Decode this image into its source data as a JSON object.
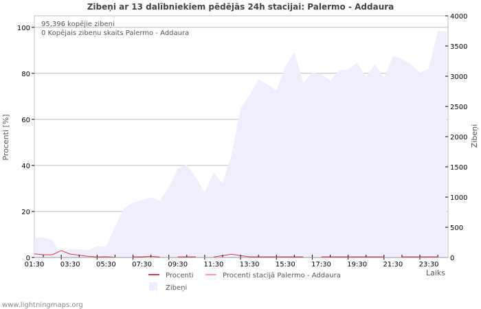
{
  "chart_data": {
    "type": "area",
    "title": "Zibeņi ar 13 dalībniekiem pēdējās 24h stacijai: Palermo - Addaura",
    "info_lines": [
      "95,396 kopējie zibeņi",
      "0 Kopējais zibeņu skaits Palermo - Addaura"
    ],
    "xlabel": "Laiks",
    "ylabel_left": "Procenti   [%]",
    "ylabel_right": "Zibeņi",
    "xlim_hours": [
      1.5,
      24.57
    ],
    "ylim_left": [
      0,
      105
    ],
    "ylim_right": [
      0,
      4000
    ],
    "x_tick_labels": [
      "01:30",
      "03:30",
      "05:30",
      "07:30",
      "09:30",
      "11:30",
      "13:30",
      "15:30",
      "17:30",
      "19:30",
      "21:30",
      "23:30"
    ],
    "y_left_ticks": [
      "0",
      "20",
      "40",
      "60",
      "80",
      "100"
    ],
    "y_right_ticks": [
      "0",
      "500",
      "1000",
      "1500",
      "2000",
      "2500",
      "3000",
      "3500",
      "4000"
    ],
    "x_hours": [
      1.5,
      2,
      2.5,
      3,
      3.5,
      4,
      4.5,
      5,
      5.5,
      6,
      6.5,
      7,
      7.5,
      8,
      8.5,
      9,
      9.5,
      10,
      10.5,
      11,
      11.5,
      12,
      12.5,
      13,
      13.5,
      14,
      14.5,
      15,
      15.5,
      16,
      16.5,
      17,
      17.5,
      18,
      18.5,
      19,
      19.5,
      20,
      20.5,
      21,
      21.5,
      22,
      22.5,
      23,
      23.5,
      24,
      24.5
    ],
    "series": [
      {
        "name": "Zibeņi",
        "axis": "right",
        "color": "#eeeeff",
        "values": [
          329,
          329,
          295,
          57,
          147,
          136,
          125,
          181,
          181,
          510,
          816,
          906,
          952,
          997,
          941,
          1167,
          1473,
          1541,
          1326,
          1076,
          1405,
          1224,
          1700,
          2470,
          2686,
          2946,
          2867,
          2765,
          3161,
          3399,
          2890,
          3059,
          3037,
          2924,
          3093,
          3116,
          3218,
          2992,
          3195,
          2969,
          3331,
          3286,
          3195,
          3059,
          3127,
          3751,
          3739
        ]
      },
      {
        "name": "Procenti",
        "axis": "left",
        "color": "#dd3344",
        "values": [
          1.6,
          1.2,
          1.2,
          3.0,
          1.5,
          1.0,
          0.5,
          0.2,
          0.4,
          0.1,
          null,
          0.3,
          0.3,
          0.5,
          0.2,
          null,
          0.3,
          0.3,
          0.3,
          null,
          0.2,
          0.8,
          1.4,
          0.8,
          0.3,
          0.3,
          0.3,
          0.3,
          0.3,
          0.3,
          0.3,
          null,
          0.3,
          0.3,
          0.3,
          0.3,
          0.3,
          0.3,
          0.3,
          0.3,
          null,
          0.3,
          0.3,
          0.3,
          0.3,
          0.3,
          null
        ]
      },
      {
        "name": "Procenti stacijā Palermo - Addaura",
        "axis": "left",
        "color": "#ff9999",
        "values": []
      }
    ]
  },
  "credit": "www.lightningmaps.org"
}
